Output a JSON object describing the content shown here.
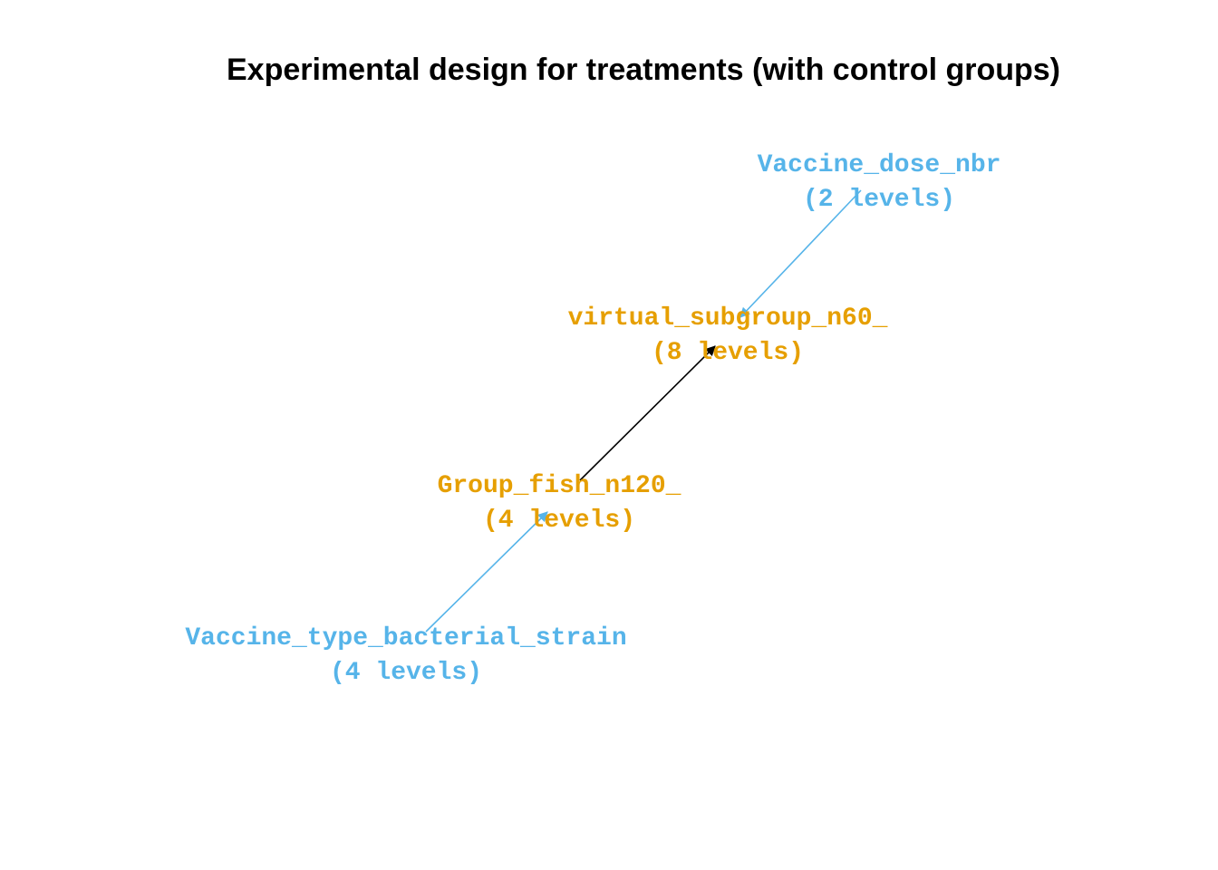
{
  "title": "Experimental design for treatments (with control groups)",
  "colors": {
    "treatment": "#56B4E9",
    "unit": "#E69F00",
    "arrow_unit": "#000000"
  },
  "nodes": [
    {
      "id": "vaccine_dose",
      "name": "Vaccine_dose_nbr",
      "levels": "(2 levels)",
      "kind": "treatment"
    },
    {
      "id": "virtual_subgroup",
      "name": "virtual_subgroup_n60_",
      "levels": "(8 levels)",
      "kind": "unit"
    },
    {
      "id": "group_fish",
      "name": "Group_fish_n120_",
      "levels": "(4 levels)",
      "kind": "unit"
    },
    {
      "id": "vaccine_type",
      "name": "Vaccine_type_bacterial_strain",
      "levels": "(4 levels)",
      "kind": "treatment"
    }
  ],
  "edges": [
    {
      "from": "vaccine_type",
      "to": "group_fish",
      "color": "#56B4E9"
    },
    {
      "from": "group_fish",
      "to": "virtual_subgroup",
      "color": "#000000"
    },
    {
      "from": "vaccine_dose",
      "to": "virtual_subgroup",
      "color": "#56B4E9"
    }
  ]
}
